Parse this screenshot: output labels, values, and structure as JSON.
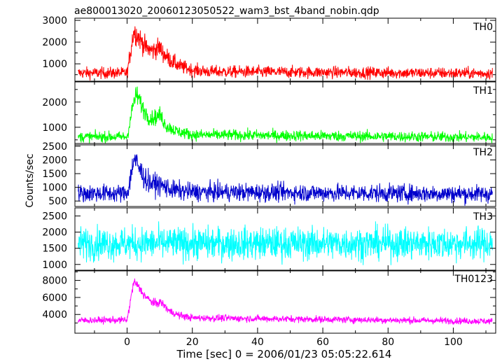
{
  "chart_data": {
    "type": "line",
    "title": "ae800013020_20060123050522_wam3_bst_4band_nobin.qdp",
    "xlabel": "Time [sec] 0 = 2006/01/23 05:05:22.614",
    "ylabel": "Counts/sec",
    "xlim": [
      -16,
      113
    ],
    "x_ticks": [
      0,
      20,
      40,
      60,
      80,
      100
    ],
    "x_tick_labels": [
      "0",
      "20",
      "40",
      "60",
      "80",
      "100"
    ],
    "grid": false,
    "panels": [
      {
        "name": "TH0",
        "color": "#ff0000",
        "ylim": [
          200,
          3100
        ],
        "yticks": [
          1000,
          2000,
          3000
        ],
        "ytick_labels": [
          "1000",
          "2000",
          "3000"
        ],
        "minor_ticks": [
          500,
          1500,
          2500
        ],
        "baseline": 580,
        "noise": 190,
        "profile": [
          [
            -15,
            580
          ],
          [
            0,
            580
          ],
          [
            1,
            1500
          ],
          [
            2,
            2500
          ],
          [
            3,
            2350
          ],
          [
            5,
            1900
          ],
          [
            6,
            1700
          ],
          [
            8,
            1600
          ],
          [
            9,
            1700
          ],
          [
            10,
            1750
          ],
          [
            11,
            1500
          ],
          [
            13,
            1200
          ],
          [
            16,
            900
          ],
          [
            20,
            720
          ],
          [
            25,
            640
          ],
          [
            112,
            560
          ]
        ]
      },
      {
        "name": "TH1",
        "color": "#00ff00",
        "ylim": [
          300,
          2800
        ],
        "yticks": [
          1000,
          2000
        ],
        "ytick_labels": [
          "1000",
          "2000"
        ],
        "minor_ticks": [
          500,
          1500,
          2500
        ],
        "baseline": 620,
        "noise": 150,
        "profile": [
          [
            -15,
            620
          ],
          [
            0,
            620
          ],
          [
            1,
            1300
          ],
          [
            2,
            2000
          ],
          [
            3,
            2300
          ],
          [
            5,
            1700
          ],
          [
            7,
            1350
          ],
          [
            9,
            1400
          ],
          [
            10,
            1500
          ],
          [
            12,
            1050
          ],
          [
            15,
            850
          ],
          [
            20,
            700
          ],
          [
            112,
            600
          ]
        ]
      },
      {
        "name": "TH2",
        "color": "#0000cc",
        "ylim": [
          300,
          2600
        ],
        "yticks": [
          500,
          1000,
          1500,
          2000,
          2500
        ],
        "ytick_labels": [
          "500",
          "1000",
          "1500",
          "2000",
          "2500"
        ],
        "minor_ticks": [],
        "baseline": 780,
        "noise": 230,
        "profile": [
          [
            -15,
            780
          ],
          [
            0,
            780
          ],
          [
            1,
            1300
          ],
          [
            2,
            2050
          ],
          [
            3,
            1850
          ],
          [
            5,
            1400
          ],
          [
            7,
            1150
          ],
          [
            10,
            1100
          ],
          [
            14,
            900
          ],
          [
            20,
            830
          ],
          [
            112,
            760
          ]
        ]
      },
      {
        "name": "TH3",
        "color": "#00ffff",
        "ylim": [
          800,
          2750
        ],
        "yticks": [
          1000,
          1500,
          2000,
          2500
        ],
        "ytick_labels": [
          "1000",
          "1500",
          "2000",
          "2500"
        ],
        "minor_ticks": [],
        "baseline": 1650,
        "noise": 360,
        "profile": [
          [
            -15,
            1650
          ],
          [
            112,
            1650
          ]
        ]
      },
      {
        "name": "TH0123",
        "color": "#ff00ff",
        "ylim": [
          1800,
          9200
        ],
        "yticks": [
          4000,
          6000,
          8000
        ],
        "ytick_labels": [
          "4000",
          "6000",
          "8000"
        ],
        "minor_ticks": [
          3000,
          5000,
          7000,
          9000
        ],
        "baseline": 3300,
        "noise": 280,
        "profile": [
          [
            -15,
            3300
          ],
          [
            0,
            3350
          ],
          [
            1,
            5500
          ],
          [
            2,
            7800
          ],
          [
            3,
            7500
          ],
          [
            5,
            6400
          ],
          [
            7,
            5600
          ],
          [
            9,
            5200
          ],
          [
            10,
            5500
          ],
          [
            11,
            5200
          ],
          [
            13,
            4400
          ],
          [
            16,
            3900
          ],
          [
            20,
            3600
          ],
          [
            112,
            3200
          ]
        ]
      }
    ]
  }
}
